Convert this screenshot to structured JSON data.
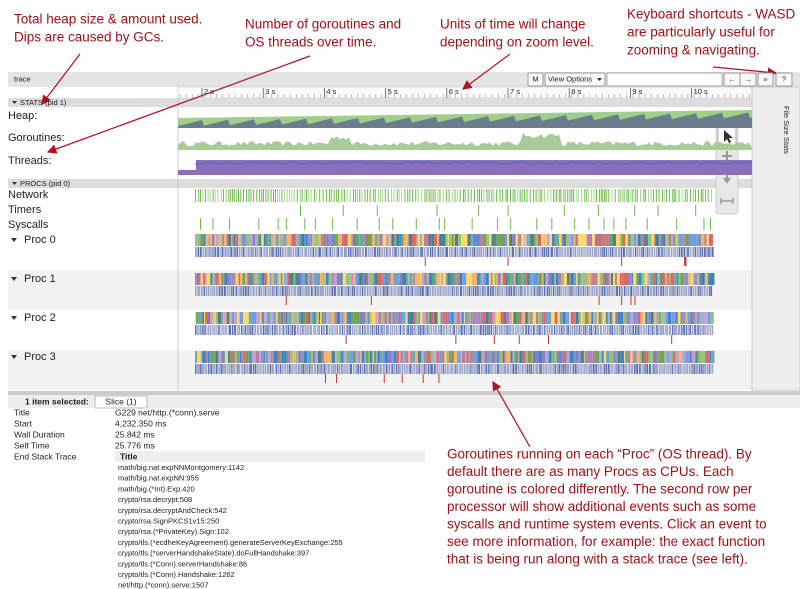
{
  "annotations": {
    "heap": [
      "Total heap size & amount used.",
      "Dips are caused by GCs."
    ],
    "goroutines": [
      "Number of goroutines and",
      "OS threads over time."
    ],
    "time_units": [
      "Units of time will change",
      "depending on zoom level."
    ],
    "shortcuts": [
      "Keyboard shortcuts - WASD",
      "are particularly useful for",
      "zooming & navigating."
    ],
    "procs": [
      "Goroutines running on each “Proc” (OS thread). By",
      "default there are as many Procs as CPUs. Each",
      "goroutine is colored differently. The second row per",
      "processor will show additional events such as some",
      "syscalls and runtime system events. Click an event to",
      "see more information, for example: the exact function",
      "that is being run along with a stack trace (see left)."
    ]
  },
  "toolbar": {
    "title": "trace",
    "buttons": [
      "M",
      "View Options",
      "←",
      "→",
      "»",
      "?"
    ]
  },
  "ruler": [
    "2 s",
    "3 s",
    "4 s",
    "5 s",
    "6 s",
    "7 s",
    "8 s",
    "9 s",
    "10 s"
  ],
  "stats": {
    "header": "STATS (pid 1)",
    "rows": [
      "Heap:",
      "Goroutines:",
      "Threads:"
    ]
  },
  "procs": {
    "header": "PROCS (pid 0)",
    "rows": [
      "Network",
      "Timers",
      "Syscalls"
    ],
    "procs": [
      "Proc 0",
      "Proc 1",
      "Proc 2",
      "Proc 3"
    ]
  },
  "side_panel": "File Size Stats",
  "selection": {
    "count": "1 item selected:",
    "tab": "Slice (1)",
    "fields": [
      [
        "Title",
        "G229 net/http.(*conn).serve"
      ],
      [
        "Start",
        "4,232.350 ms"
      ],
      [
        "Wall Duration",
        "25.842 ms"
      ],
      [
        "Self Time",
        "25.776 ms"
      ]
    ],
    "stack_label": "End Stack Trace",
    "stack_header": "Title",
    "stack": [
      "math/big.nat.expNNMontgomery:1142",
      "math/big.nat.expNN:955",
      "math/big.(*Int).Exp:420",
      "crypto/rsa.decrypt:508",
      "crypto/rsa.decryptAndCheck:542",
      "crypto/rsa.SignPKCS1v15:250",
      "crypto/rsa.(*PrivateKey).Sign:102",
      "crypto/tls.(*ecdheKeyAgreement).generateServerKeyExchange:255",
      "crypto/tls.(*serverHandshakeState).doFullHandshake:397",
      "crypto/tls.(*Conn).serverHandshake:86",
      "crypto/tls.(*Conn).Handshake:1262",
      "net/http.(*conn).serve:1507"
    ]
  }
}
